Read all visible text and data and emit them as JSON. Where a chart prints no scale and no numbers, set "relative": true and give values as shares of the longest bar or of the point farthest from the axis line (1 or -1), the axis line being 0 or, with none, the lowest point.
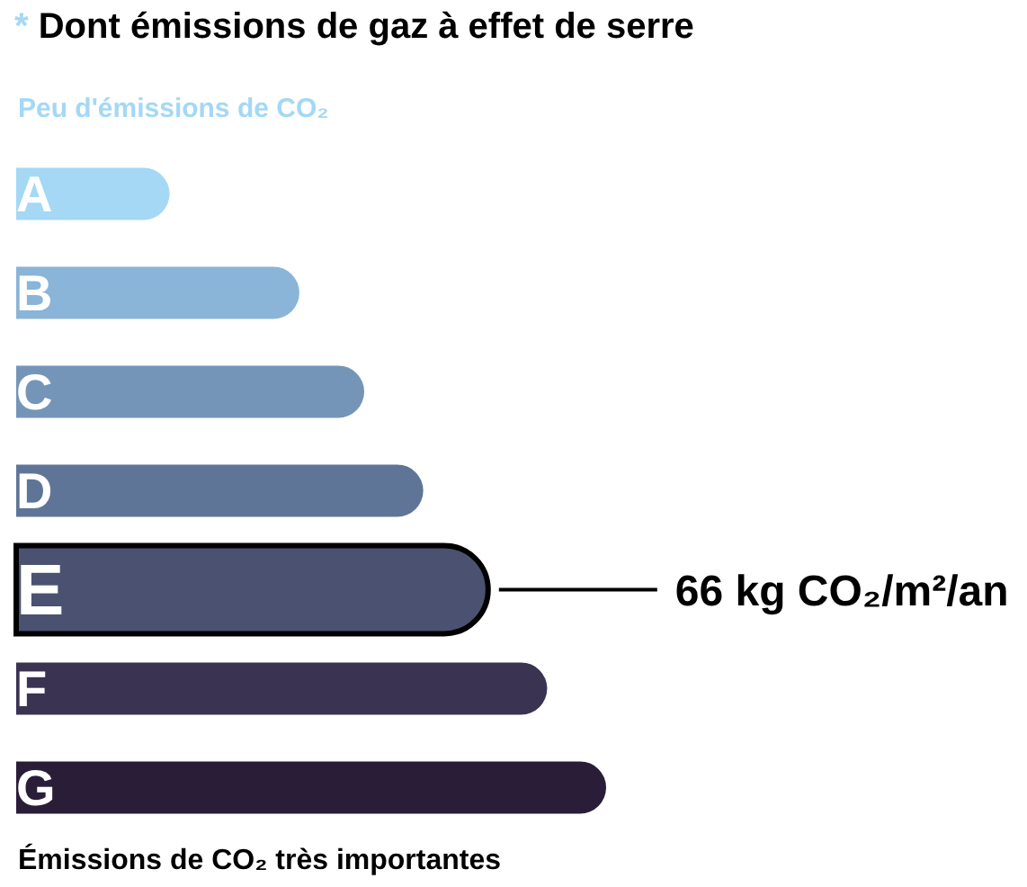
{
  "chart_data": {
    "type": "bar",
    "orientation": "horizontal",
    "relative": true,
    "title": "* Dont émissions de gaz à effet de serre",
    "subtitle": "Peu d'émissions de CO₂",
    "categories": [
      "A",
      "B",
      "C",
      "D",
      "E",
      "F",
      "G"
    ],
    "values": [
      0.26,
      0.48,
      0.59,
      0.69,
      0.8,
      0.9,
      1
    ],
    "colors": [
      "#a4d8f5",
      "#8ab4d8",
      "#7595b8",
      "#5f7598",
      "#4b5170",
      "#3a3352",
      "#2a1d38"
    ],
    "annotations": [
      {
        "text": "66 kg CO₂/m²/an",
        "x": 0.8,
        "y": "E"
      },
      "Émissions de CO₂ très importantes"
    ]
  }
}
